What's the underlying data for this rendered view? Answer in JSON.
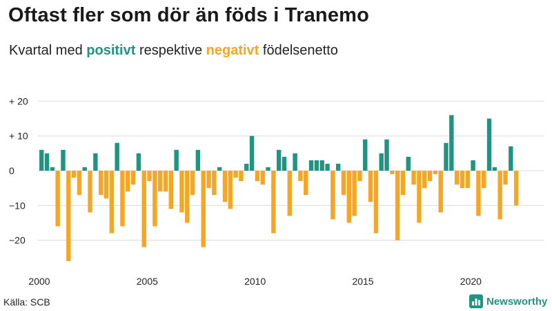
{
  "header": {
    "title": "Oftast fler som dör än föds i Tranemo",
    "subtitle_pre": "Kvartal med ",
    "subtitle_pos": "positivt",
    "subtitle_mid": " respektive ",
    "subtitle_neg": "negativt",
    "subtitle_post": " födelsenetto"
  },
  "footer": {
    "source": "Källa: SCB",
    "brand": "Newsworthy"
  },
  "colors": {
    "positive": "#1f9483",
    "negative": "#f5a623",
    "grid": "#d9d9d9",
    "text": "#222222"
  },
  "chart_data": {
    "type": "bar",
    "x_start": 2000,
    "x_step": 0.25,
    "values": [
      6,
      5,
      1,
      -16,
      6,
      -26,
      -2,
      -7,
      1,
      -12,
      5,
      -7,
      -8,
      -18,
      8,
      -16,
      -6,
      -4,
      5,
      -22,
      -3,
      -16,
      -6,
      -6,
      -11,
      6,
      -12,
      -15,
      -7,
      6,
      -22,
      -5,
      -7,
      1,
      -9,
      -11,
      -2,
      -3,
      2,
      10,
      -3,
      -4,
      1,
      -18,
      6,
      4,
      -13,
      5,
      -3,
      -7,
      3,
      3,
      3,
      2,
      -14,
      2,
      -7,
      -15,
      -13,
      -3,
      9,
      -9,
      -18,
      5,
      9,
      -1,
      -20,
      -7,
      4,
      -4,
      -15,
      -5,
      -3,
      -1,
      -12,
      8,
      16,
      -4,
      -5,
      -5,
      3,
      -13,
      -5,
      15,
      1,
      -14,
      -4,
      7,
      -10
    ],
    "xlim": [
      2000,
      2023.25
    ],
    "ylim": [
      -26,
      20
    ],
    "yticks": [
      20,
      10,
      0,
      -10,
      -20
    ],
    "ytick_labels": [
      "+ 20",
      "+ 10",
      "0",
      "−10",
      "−20"
    ],
    "xticks": [
      2000,
      2005,
      2010,
      2015,
      2020
    ],
    "xtick_labels": [
      "2000",
      "2005",
      "2010",
      "2015",
      "2020"
    ],
    "grid": true,
    "legend": "none"
  }
}
